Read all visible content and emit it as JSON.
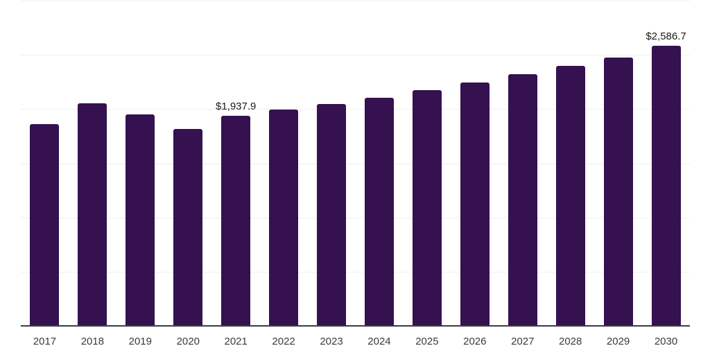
{
  "chart_data": {
    "type": "bar",
    "title": "",
    "categories": [
      "2017",
      "2018",
      "2019",
      "2020",
      "2021",
      "2022",
      "2023",
      "2024",
      "2025",
      "2026",
      "2027",
      "2028",
      "2029",
      "2030"
    ],
    "values": [
      1860.0,
      2052.0,
      1950.0,
      1817.0,
      1937.9,
      1994.0,
      2049.0,
      2107.0,
      2175.0,
      2244.0,
      2324.0,
      2399.0,
      2474.0,
      2586.7
    ],
    "value_labels": [
      {
        "index": 4,
        "text": "$1,937.9"
      },
      {
        "index": 13,
        "text": "$2,586.7"
      }
    ],
    "xlabel": "",
    "ylabel": "",
    "ylim": [
      0,
      3000
    ],
    "gridline_step": 500,
    "grid": "horizontal",
    "legend": "none"
  },
  "styles": {
    "background_color": "#ffffff",
    "bar_color": "#351150",
    "gridline_color": "#efefef",
    "axis_line_color": "#3d3d3d",
    "x_label_color": "#3a3a3a",
    "value_label_color": "#1a1a1a"
  }
}
